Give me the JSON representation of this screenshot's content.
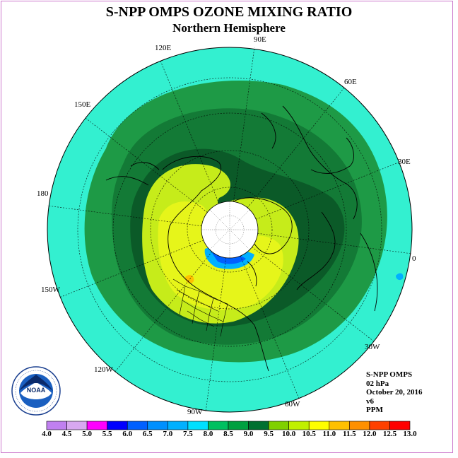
{
  "title": "S-NPP OMPS OZONE MIXING RATIO",
  "subtitle": "Northern Hemisphere",
  "longitude_labels": [
    "90E",
    "60E",
    "30E",
    "0",
    "30W",
    "60W",
    "90W",
    "120W",
    "150W",
    "180",
    "150E",
    "120E"
  ],
  "info": {
    "instrument": "S-NPP OMPS",
    "level": "02 hPa",
    "date": "October 20, 2016",
    "version": "v6",
    "units": "PPM"
  },
  "logo": {
    "text": "NOAA",
    "ring_text": "NATIONAL OCEANIC AND ATMOSPHERIC ADMINISTRATION · U.S. DEPARTMENT OF COMMERCE"
  },
  "colorbar": {
    "labels": [
      "4.0",
      "4.5",
      "5.0",
      "5.5",
      "6.0",
      "6.5",
      "7.0",
      "7.5",
      "8.0",
      "8.5",
      "9.0",
      "9.5",
      "10.0",
      "10.5",
      "11.0",
      "11.5",
      "12.0",
      "12.5",
      "13.0"
    ],
    "colors": [
      "#c080f0",
      "#d8a8f0",
      "#ff00ff",
      "#0000ff",
      "#0060ff",
      "#0090ff",
      "#00b0ff",
      "#00e0ff",
      "#00c060",
      "#00a040",
      "#007030",
      "#80d000",
      "#c0f000",
      "#ffff00",
      "#ffc000",
      "#ff9000",
      "#ff4000",
      "#ff0000",
      "#8b5a30"
    ]
  },
  "colors": {
    "ocean_band": "#33f0d0",
    "green_light": "#1e9a46",
    "green_mid": "#137a36",
    "green_dark": "#0b5a28",
    "yellow_green": "#c6ec1a",
    "yellow": "#e6f51a"
  }
}
